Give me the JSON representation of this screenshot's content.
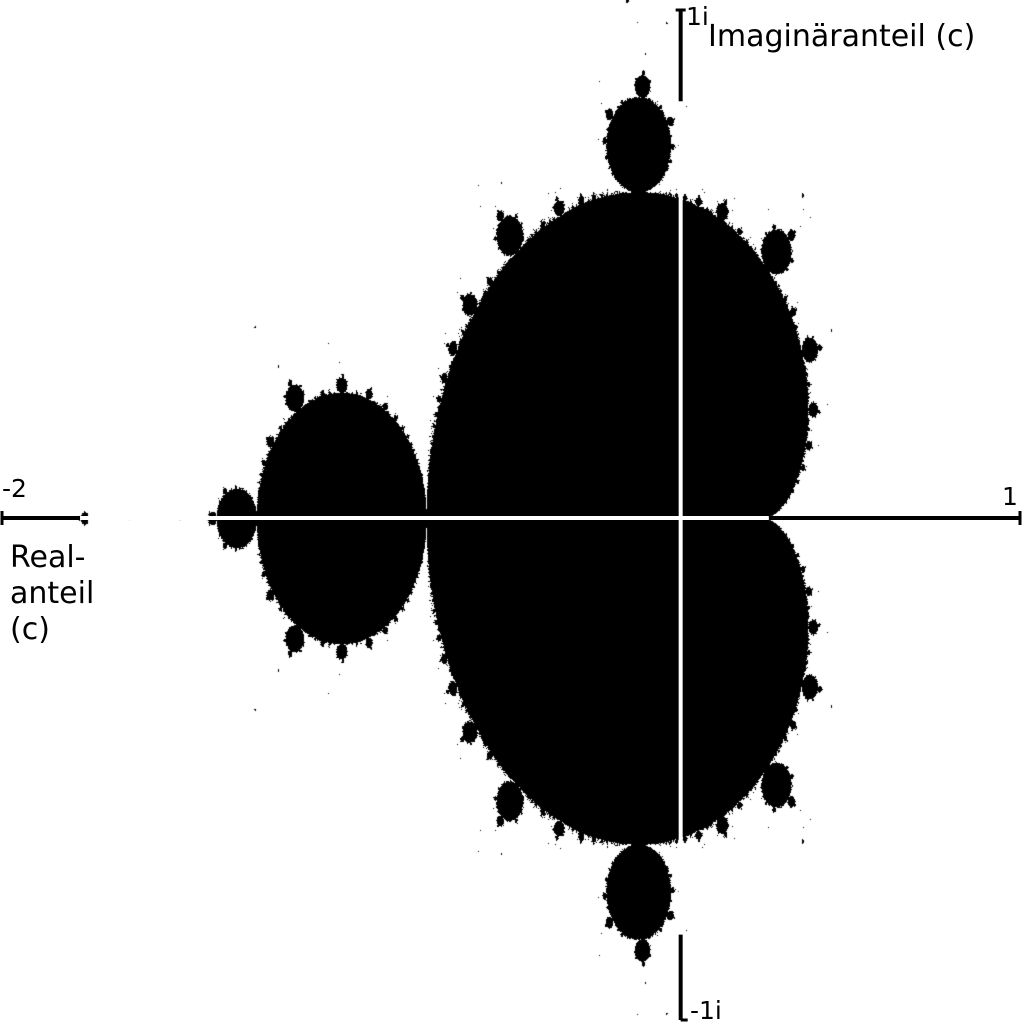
{
  "axes": {
    "real_min_label": "-2",
    "real_max_label": "1",
    "imag_max_label": "1i",
    "imag_min_label": "-1i",
    "imag_title": "Imaginäranteil (c)",
    "real_title_lines": [
      "Real-",
      "anteil",
      "(c)"
    ]
  },
  "plane": {
    "re_range": [
      -2,
      1
    ],
    "im_range": [
      -1,
      1
    ],
    "set": "Mandelbrot",
    "set_color": "#000000",
    "background_color": "#ffffff",
    "origin_axis_color": "#ffffff",
    "outer_axis_color": "#000000"
  }
}
